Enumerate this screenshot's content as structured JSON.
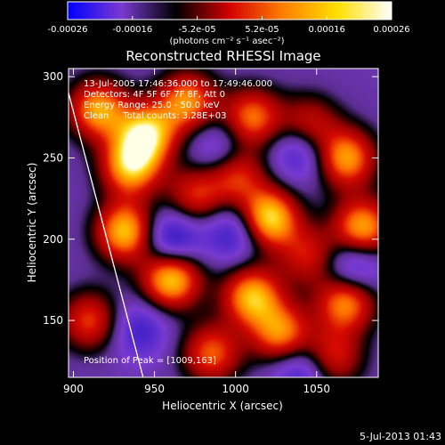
{
  "chart_data": {
    "type": "heatmap",
    "title": "Reconstructed RHESSI Image",
    "xlabel": "Heliocentric X (arcsec)",
    "ylabel": "Heliocentric Y (arcsec)",
    "xlim": [
      897,
      1088
    ],
    "ylim": [
      115,
      305
    ],
    "xticks": [
      900,
      950,
      1000,
      1050
    ],
    "yticks": [
      150,
      200,
      250,
      300
    ],
    "colorbar": {
      "ticks": [
        "-0.00026",
        "-0.00016",
        "-5.2e-05",
        "5.2e-05",
        "0.00016",
        "0.00026"
      ],
      "unit": "(photons cm⁻² s⁻¹ asec⁻²)",
      "colors": [
        "#0000ff",
        "#7a3ad0",
        "#000000",
        "#d40000",
        "#ff8000",
        "#ffe000",
        "#ffffff"
      ]
    },
    "annotations": [
      "13-Jul-2005 17:46:36.000 to 17:49:46.000",
      "Detectors: 4F 5F 6F 7F 8F, Att 0",
      "Energy Range: 25.0 - 50.0 keV",
      "Clean     Total counts: 3.28E+03"
    ],
    "peak_label": "Position of Peak = [1009,163]",
    "limb": {
      "x": [
        897,
        943
      ],
      "y": [
        290,
        115
      ]
    },
    "sources": [
      {
        "x": 915,
        "y": 280,
        "v": 0.8
      },
      {
        "x": 935,
        "y": 245,
        "v": 0.85
      },
      {
        "x": 945,
        "y": 265,
        "v": 0.9
      },
      {
        "x": 970,
        "y": 285,
        "v": 0.75
      },
      {
        "x": 1010,
        "y": 275,
        "v": 0.7
      },
      {
        "x": 1045,
        "y": 270,
        "v": 0.55
      },
      {
        "x": 1068,
        "y": 250,
        "v": 0.8
      },
      {
        "x": 1000,
        "y": 240,
        "v": 0.6
      },
      {
        "x": 1020,
        "y": 213,
        "v": 1.0
      },
      {
        "x": 1078,
        "y": 207,
        "v": 0.85
      },
      {
        "x": 975,
        "y": 227,
        "v": 0.55
      },
      {
        "x": 932,
        "y": 205,
        "v": 0.9
      },
      {
        "x": 960,
        "y": 176,
        "v": 0.95
      },
      {
        "x": 1010,
        "y": 165,
        "v": 0.85
      },
      {
        "x": 1028,
        "y": 142,
        "v": 0.75
      },
      {
        "x": 1068,
        "y": 162,
        "v": 0.8
      },
      {
        "x": 985,
        "y": 130,
        "v": 0.65
      },
      {
        "x": 1060,
        "y": 128,
        "v": 0.55
      },
      {
        "x": 910,
        "y": 150,
        "v": 0.6
      },
      {
        "x": 1045,
        "y": 190,
        "v": 0.5
      },
      {
        "x": 960,
        "y": 200,
        "v": -0.55
      },
      {
        "x": 1000,
        "y": 205,
        "v": -0.45
      },
      {
        "x": 1040,
        "y": 255,
        "v": -0.45
      },
      {
        "x": 1072,
        "y": 183,
        "v": -0.5
      },
      {
        "x": 1040,
        "y": 120,
        "v": -0.4
      },
      {
        "x": 990,
        "y": 255,
        "v": -0.35
      },
      {
        "x": 940,
        "y": 145,
        "v": -0.35
      }
    ]
  },
  "footer": "5-Jul-2013 01:43"
}
